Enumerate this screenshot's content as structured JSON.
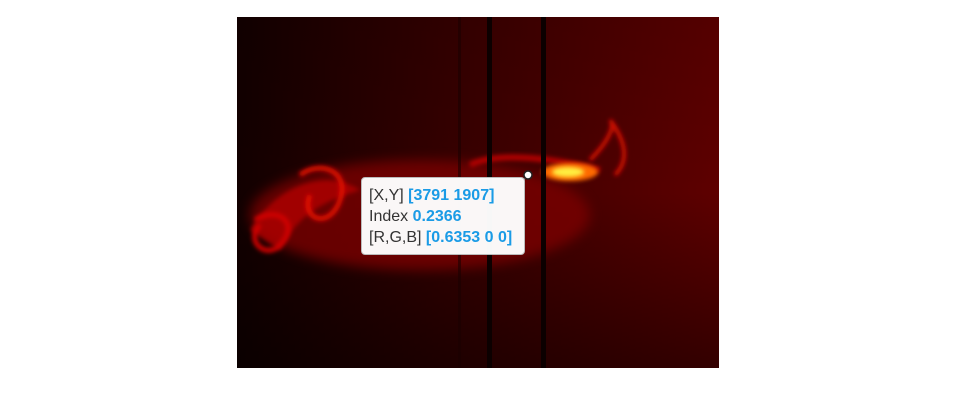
{
  "datatip": {
    "rows": [
      {
        "label": "[X,Y]",
        "value": "[3791 1907]"
      },
      {
        "label": "Index",
        "value": "0.2366"
      },
      {
        "label": "[R,G,B]",
        "value": "[0.6353 0 0]"
      }
    ]
  }
}
